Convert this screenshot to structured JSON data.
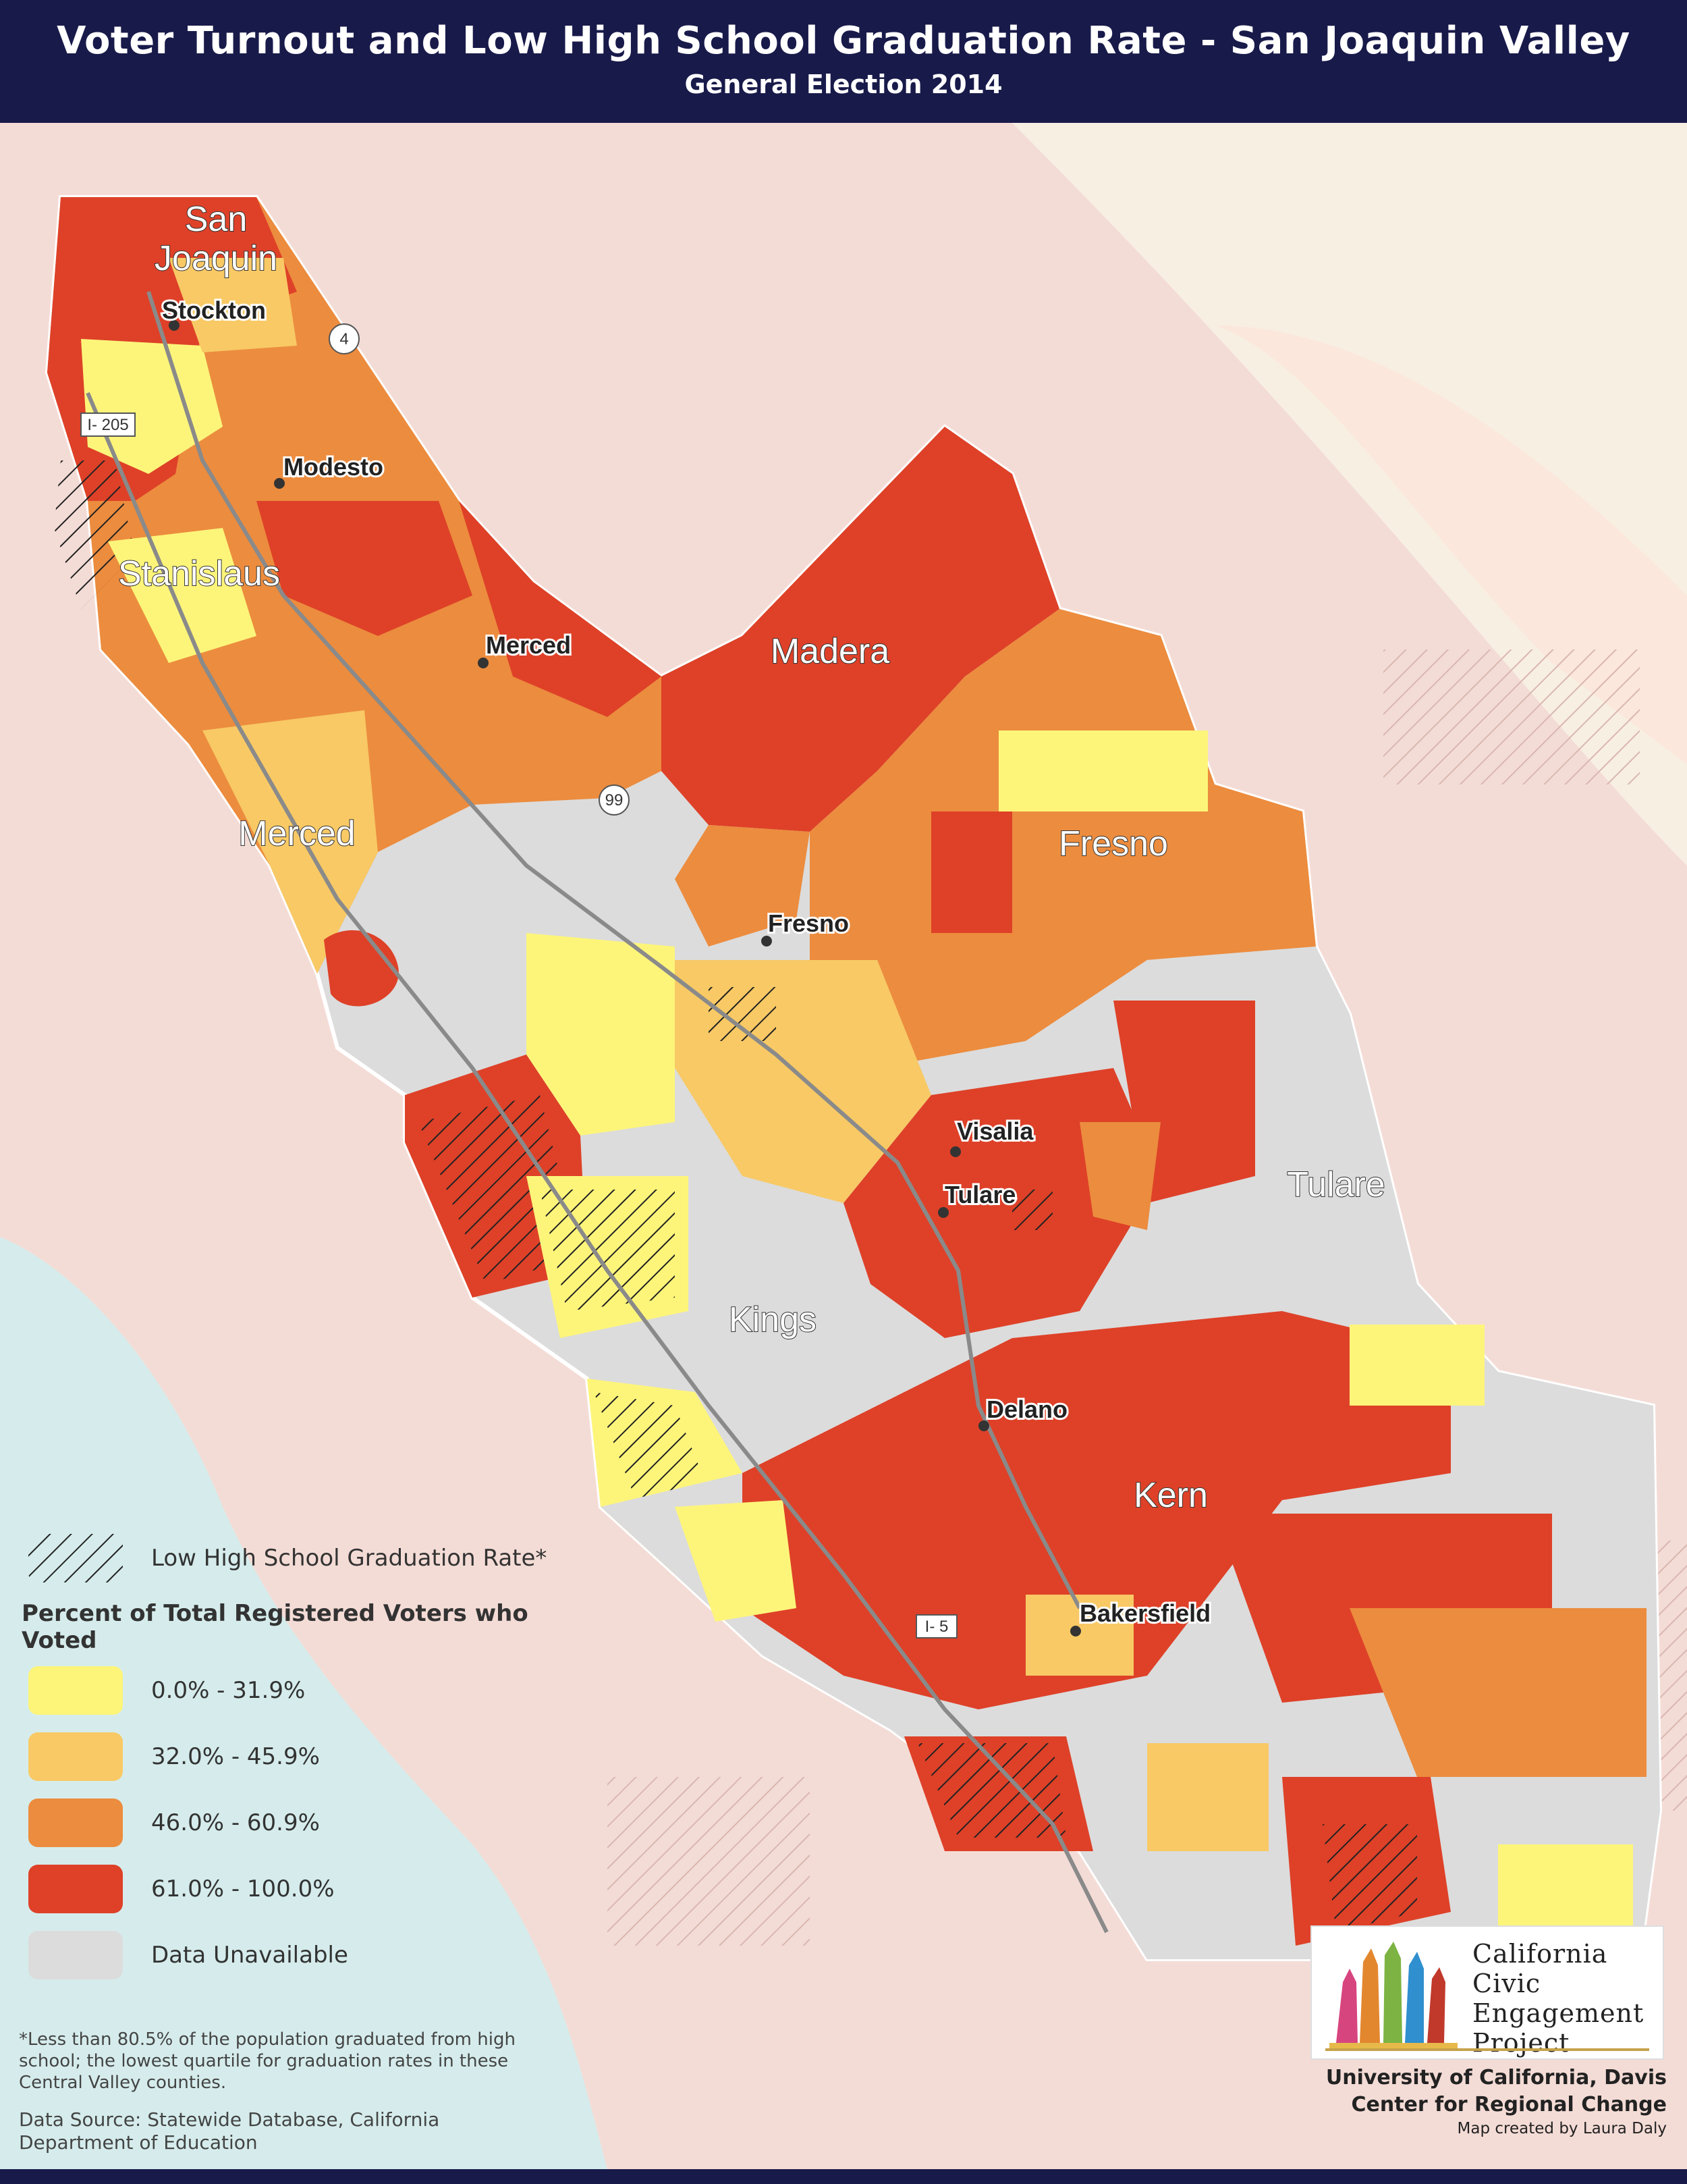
{
  "header": {
    "title": "Voter Turnout and Low High School Graduation Rate - San Joaquin Valley",
    "subtitle": "General Election 2014"
  },
  "map": {
    "counties": [
      {
        "name": "San Joaquin",
        "lines": [
          "San",
          "Joaquin"
        ]
      },
      {
        "name": "Stanislaus"
      },
      {
        "name": "Merced"
      },
      {
        "name": "Madera"
      },
      {
        "name": "Fresno"
      },
      {
        "name": "Tulare"
      },
      {
        "name": "Kings"
      },
      {
        "name": "Kern"
      }
    ],
    "cities": [
      "Stockton",
      "Modesto",
      "Merced",
      "Fresno",
      "Visalia",
      "Tulare",
      "Delano",
      "Bakersfield"
    ],
    "highways": [
      "4",
      "I- 205",
      "99",
      "I- 5"
    ]
  },
  "legend": {
    "hatch_label": "Low High School Graduation Rate*",
    "title": "Percent of Total Registered Voters who Voted",
    "items": [
      {
        "label": "0.0% - 31.9%",
        "color": "#fdf57a"
      },
      {
        "label": "32.0% - 45.9%",
        "color": "#f8c965"
      },
      {
        "label": "46.0% - 60.9%",
        "color": "#ec8c3e"
      },
      {
        "label": "61.0% - 100.0%",
        "color": "#de4128"
      },
      {
        "label": "Data Unavailable",
        "color": "#dcdcdc"
      }
    ]
  },
  "notes": {
    "footnote": "*Less than 80.5% of the population graduated from high school; the lowest quartile for graduation rates in these Central Valley counties.",
    "source": "Data Source: Statewide Database, California Department of Education"
  },
  "logo": {
    "lines": [
      "California",
      "Civic",
      "Engagement",
      "Project"
    ]
  },
  "credits": {
    "line1": "University of California, Davis",
    "line2": "Center for Regional Change",
    "line3": "Map created by Laura Daly"
  },
  "colors": {
    "header_bg": "#181a4a",
    "background": "#f4dcd6",
    "ocean": "#d6ecec",
    "region_outline": "#ffffff"
  }
}
